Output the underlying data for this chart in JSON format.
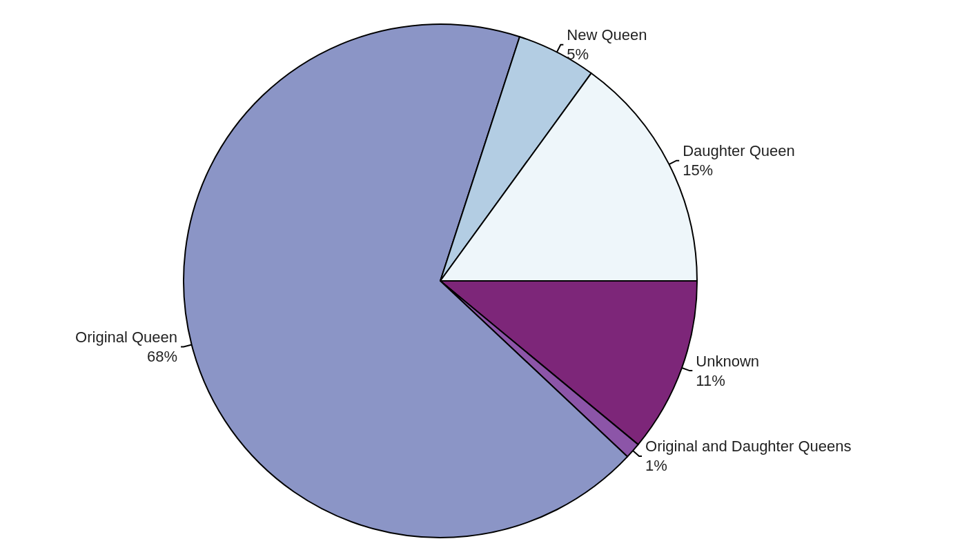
{
  "chart_data": {
    "type": "pie",
    "categories": [
      "Unknown",
      "Original and Daughter Queens",
      "Original Queen",
      "New Queen",
      "Daughter Queen"
    ],
    "values": [
      11,
      1,
      68,
      5,
      15
    ],
    "value_labels": [
      "11%",
      "1%",
      "68%",
      "5%",
      "15%"
    ],
    "colors": [
      "#7d2679",
      "#8c55a8",
      "#8b95c6",
      "#b3cde3",
      "#eef6fa"
    ]
  }
}
